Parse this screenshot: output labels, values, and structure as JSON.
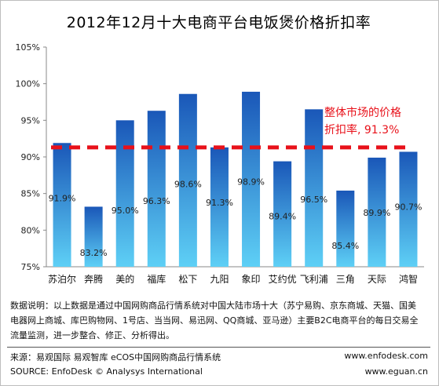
{
  "chart_data": {
    "type": "bar",
    "title": "2012年12月十大电商平台电饭煲价格折扣率",
    "categories": [
      "苏泊尔",
      "奔腾",
      "美的",
      "福库",
      "松下",
      "九阳",
      "象印",
      "艾约优",
      "飞利浦",
      "三角",
      "天际",
      "鸿智"
    ],
    "values": [
      91.9,
      83.2,
      95.0,
      96.3,
      98.6,
      91.3,
      98.9,
      89.4,
      96.5,
      85.4,
      89.9,
      90.7
    ],
    "value_labels": [
      "91.9%",
      "83.2%",
      "95.0%",
      "96.3%",
      "98.6%",
      "91.3%",
      "98.9%",
      "89.4%",
      "96.5%",
      "85.4%",
      "89.9%",
      "90.7%"
    ],
    "y_ticks": [
      "75%",
      "80%",
      "85%",
      "90%",
      "95%",
      "100%",
      "105%"
    ],
    "ylim": [
      75,
      105
    ],
    "reference_line": {
      "value": 91.3,
      "label_line1": "整体市场的价格",
      "label_line2": "折扣率, 91.3%",
      "color": "#e8111a"
    },
    "bar_color_top": "#1a57b8",
    "bar_color_bottom": "#5ed0f6",
    "grid": false,
    "legend": "none"
  },
  "notes": {
    "line1": "数据说明：以上数据是通过中国网购商品行情系统对中国大陆市场十大（苏宁易购、京东商城、天猫、国美",
    "line2": "电器网上商城、库巴购物网、1号店、当当网、易迅网、QQ商城、亚马逊）主要B2C电商平台的每日交易全",
    "line3": "流量监测，进一步整合、修正、分析得出。"
  },
  "footer": {
    "source_cn": "来源：易观国际 易观智库 eCOS中国网购商品行情系统",
    "url1": "www.enfodesk.com",
    "source_en": "SOURCE: EnfoDesk © Analysys International",
    "url2": "www.eguan.cn"
  }
}
